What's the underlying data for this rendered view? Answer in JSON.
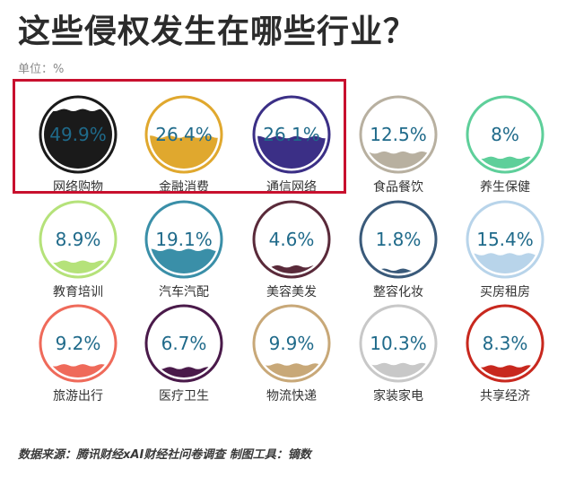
{
  "title": "这些侵权发生在哪些行业？",
  "unit": "单位：%",
  "footer": "数据来源：腾讯财经xAI财经社问卷调查 制图工具：镝数",
  "highlight": "red-box-around-top-three",
  "chart_data": {
    "type": "liquid-fill",
    "title": "这些侵权发生在哪些行业？",
    "unit": "%",
    "categories": [
      "网络购物",
      "金融消费",
      "通信网络",
      "食品餐饮",
      "养生保健",
      "教育培训",
      "汽车汽配",
      "美容美发",
      "整容化妆",
      "买房租房",
      "旅游出行",
      "医疗卫生",
      "物流快递",
      "家装家电",
      "共享经济"
    ],
    "values": [
      49.9,
      26.4,
      26.1,
      12.5,
      8,
      8.9,
      19.1,
      4.6,
      1.8,
      15.4,
      9.2,
      6.7,
      9.9,
      10.3,
      8.3
    ],
    "labels": [
      "49.9%",
      "26.4%",
      "26.1%",
      "12.5%",
      "8%",
      "8.9%",
      "19.1%",
      "4.6%",
      "1.8%",
      "15.4%",
      "9.2%",
      "6.7%",
      "9.9%",
      "10.3%",
      "8.3%"
    ],
    "colors": [
      "#1a1a1a",
      "#e0a82e",
      "#3b2f86",
      "#b8b0a0",
      "#5ecf9a",
      "#b5e27a",
      "#3a8fa8",
      "#5a2a3a",
      "#3a5a7a",
      "#b8d4ea",
      "#ef6a5a",
      "#4a1a4a",
      "#c8a878",
      "#c8c8c8",
      "#c8281e"
    ]
  }
}
